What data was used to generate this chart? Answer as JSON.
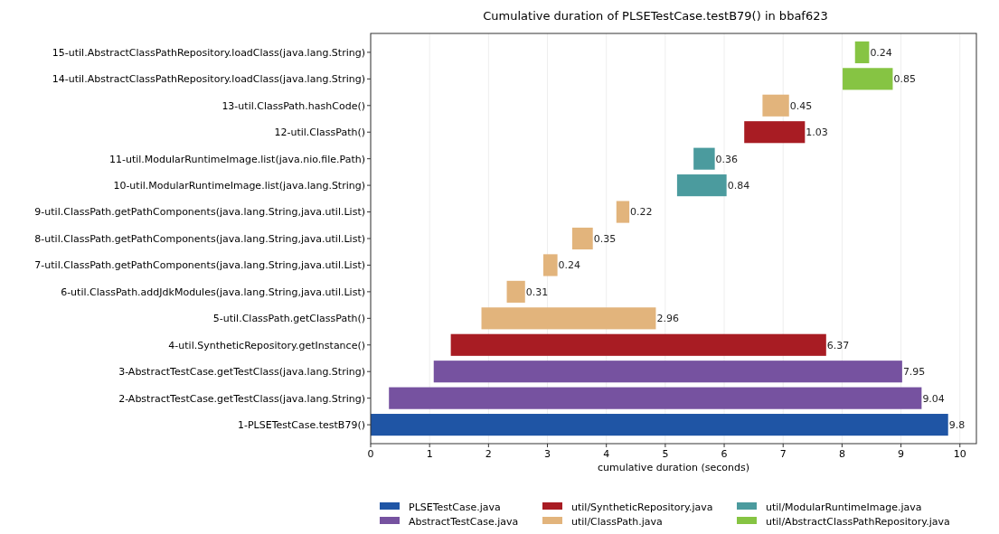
{
  "chart_data": {
    "type": "bar",
    "orientation": "horizontal",
    "title": "Cumulative duration of PLSETestCase.testB79() in bbaf623",
    "xlabel": "cumulative duration (seconds)",
    "categories": [
      "15-util.AbstractClassPathRepository.loadClass(java.lang.String)",
      "14-util.AbstractClassPathRepository.loadClass(java.lang.String)",
      "13-util.ClassPath.hashCode()",
      "12-util.ClassPath()",
      "11-util.ModularRuntimeImage.list(java.nio.file.Path)",
      "10-util.ModularRuntimeImage.list(java.lang.String)",
      "9-util.ClassPath.getPathComponents(java.lang.String,java.util.List)",
      "8-util.ClassPath.getPathComponents(java.lang.String,java.util.List)",
      "7-util.ClassPath.getPathComponents(java.lang.String,java.util.List)",
      "6-util.ClassPath.addJdkModules(java.lang.String,java.util.List)",
      "5-util.ClassPath.getClassPath()",
      "4-util.SyntheticRepository.getInstance()",
      "3-AbstractTestCase.getTestClass(java.lang.String)",
      "2-AbstractTestCase.getTestClass(java.lang.String)",
      "1-PLSETestCase.testB79()"
    ],
    "series": [
      {
        "name": "PLSETestCase.java",
        "color": "#1f55a5",
        "values": [
          null,
          null,
          null,
          null,
          null,
          null,
          null,
          null,
          null,
          null,
          null,
          null,
          null,
          null,
          9.8
        ],
        "base": [
          null,
          null,
          null,
          null,
          null,
          null,
          null,
          null,
          null,
          null,
          null,
          null,
          null,
          null,
          0
        ]
      },
      {
        "name": "AbstractTestCase.java",
        "color": "#7652a0",
        "values": [
          null,
          null,
          null,
          null,
          null,
          null,
          null,
          null,
          null,
          null,
          null,
          null,
          7.95,
          9.04,
          null
        ],
        "base": [
          null,
          null,
          null,
          null,
          null,
          null,
          null,
          null,
          null,
          null,
          null,
          null,
          1.07,
          0.31,
          null
        ]
      },
      {
        "name": "util/SyntheticRepository.java",
        "color": "#a81c23",
        "values": [
          null,
          null,
          null,
          1.03,
          null,
          null,
          null,
          null,
          null,
          null,
          null,
          6.37,
          null,
          null,
          null
        ],
        "base": [
          null,
          null,
          null,
          6.34,
          null,
          null,
          null,
          null,
          null,
          null,
          null,
          1.36,
          null,
          null,
          null
        ]
      },
      {
        "name": "util/ClassPath.java",
        "color": "#e2b47c",
        "values": [
          null,
          null,
          0.45,
          null,
          null,
          null,
          0.22,
          0.35,
          0.24,
          0.31,
          2.96,
          null,
          null,
          null,
          null
        ],
        "base": [
          null,
          null,
          6.65,
          null,
          null,
          null,
          4.17,
          3.42,
          2.93,
          2.31,
          1.88,
          null,
          null,
          null,
          null
        ]
      },
      {
        "name": "util/ModularRuntimeImage.java",
        "color": "#4b9b9e",
        "values": [
          null,
          null,
          null,
          null,
          0.36,
          0.84,
          null,
          null,
          null,
          null,
          null,
          null,
          null,
          null,
          null
        ],
        "base": [
          null,
          null,
          null,
          null,
          5.48,
          5.2,
          null,
          null,
          null,
          null,
          null,
          null,
          null,
          null,
          null
        ]
      },
      {
        "name": "util/AbstractClassPathRepository.java",
        "color": "#86c443",
        "values": [
          0.24,
          0.85,
          null,
          null,
          null,
          null,
          null,
          null,
          null,
          null,
          null,
          null,
          null,
          null,
          null
        ],
        "base": [
          8.22,
          8.01,
          null,
          null,
          null,
          null,
          null,
          null,
          null,
          null,
          null,
          null,
          null,
          null,
          null
        ]
      }
    ],
    "xlim": [
      0,
      10.28
    ],
    "xticks": [
      0,
      1,
      2,
      3,
      4,
      5,
      6,
      7,
      8,
      9,
      10
    ],
    "grid": "x",
    "data_labels": true,
    "legend": "bottom"
  }
}
